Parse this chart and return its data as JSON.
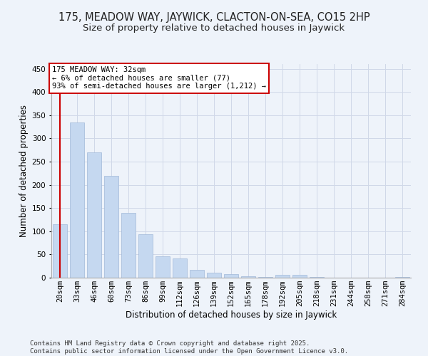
{
  "title": "175, MEADOW WAY, JAYWICK, CLACTON-ON-SEA, CO15 2HP",
  "subtitle": "Size of property relative to detached houses in Jaywick",
  "xlabel": "Distribution of detached houses by size in Jaywick",
  "ylabel": "Number of detached properties",
  "categories": [
    "20sqm",
    "33sqm",
    "46sqm",
    "60sqm",
    "73sqm",
    "86sqm",
    "99sqm",
    "112sqm",
    "126sqm",
    "139sqm",
    "152sqm",
    "165sqm",
    "178sqm",
    "192sqm",
    "205sqm",
    "218sqm",
    "231sqm",
    "244sqm",
    "258sqm",
    "271sqm",
    "284sqm"
  ],
  "values": [
    115,
    335,
    270,
    220,
    140,
    94,
    46,
    41,
    17,
    10,
    7,
    3,
    1,
    6,
    6,
    1,
    0,
    0,
    0,
    0,
    2
  ],
  "bar_color": "#c5d8f0",
  "bar_edge_color": "#a0b8d8",
  "grid_color": "#d0d8e8",
  "background_color": "#eef3fa",
  "annotation_text": "175 MEADOW WAY: 32sqm\n← 6% of detached houses are smaller (77)\n93% of semi-detached houses are larger (1,212) →",
  "annotation_box_color": "#ffffff",
  "annotation_border_color": "#cc0000",
  "footer_text": "Contains HM Land Registry data © Crown copyright and database right 2025.\nContains public sector information licensed under the Open Government Licence v3.0.",
  "ylim": [
    0,
    460
  ],
  "yticks": [
    0,
    50,
    100,
    150,
    200,
    250,
    300,
    350,
    400,
    450
  ],
  "title_fontsize": 10.5,
  "subtitle_fontsize": 9.5,
  "axis_label_fontsize": 8.5,
  "tick_fontsize": 7.5,
  "annotation_fontsize": 7.5,
  "footer_fontsize": 6.5,
  "red_line_color": "#cc0000",
  "red_line_x": 0.0
}
